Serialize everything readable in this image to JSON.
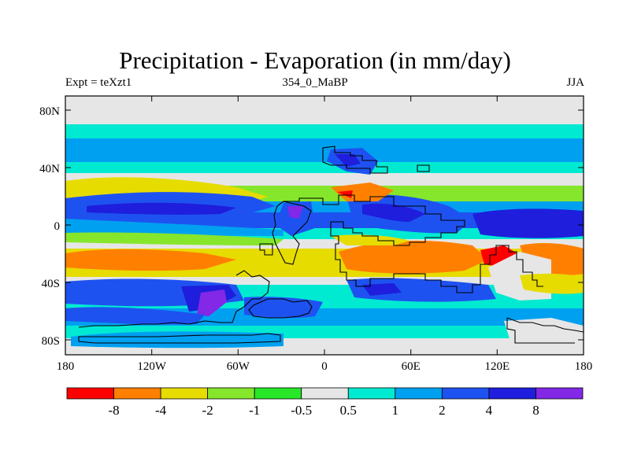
{
  "title": "Precipitation - Evaporation (in mm/day)",
  "left_label": "Expt = teXzt1",
  "center_label": "354_0_MaBP",
  "right_label": "JJA",
  "lat_ticks": [
    "80N",
    "40N",
    "0",
    "40S",
    "80S"
  ],
  "lon_ticks": [
    "180",
    "120W",
    "60W",
    "0",
    "60E",
    "120E",
    "180"
  ],
  "colorbar": {
    "colors": [
      "#ff0000",
      "#ff8000",
      "#e6dc00",
      "#86e62c",
      "#28e628",
      "#e6e6e6",
      "#00ead2",
      "#00a0f0",
      "#1e52f0",
      "#1e1edc",
      "#8228e6"
    ],
    "labels": [
      "-8",
      "-4",
      "-2",
      "-1",
      "-0.5",
      "0.5",
      "1",
      "2",
      "4",
      "8"
    ]
  }
}
